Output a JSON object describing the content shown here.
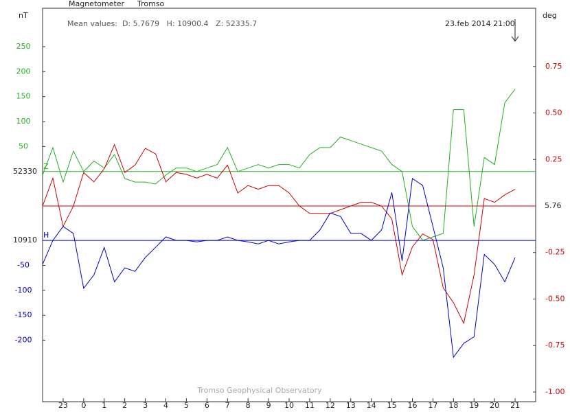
{
  "chart_data": {
    "type": "line",
    "title": "Magnetometer",
    "station": "Tromso",
    "mean_values": "Mean values:  D: 5.7679   H: 10900.4   Z: 52335.7",
    "timestamp": "23.feb 2014 21:00",
    "footer": "Tromso Geophysical Observatory",
    "left_unit": "nT",
    "right_unit": "deg",
    "xlim": [
      0,
      24
    ],
    "xticks": [
      {
        "value": 1,
        "label": "23"
      },
      {
        "value": 2,
        "label": "0"
      },
      {
        "value": 3,
        "label": "1"
      },
      {
        "value": 4,
        "label": "2"
      },
      {
        "value": 5,
        "label": "3"
      },
      {
        "value": 6,
        "label": "4"
      },
      {
        "value": 7,
        "label": "5"
      },
      {
        "value": 8,
        "label": "6"
      },
      {
        "value": 9,
        "label": "7"
      },
      {
        "value": 10,
        "label": "8"
      },
      {
        "value": 11,
        "label": "9"
      },
      {
        "value": 12,
        "label": "10"
      },
      {
        "value": 13,
        "label": "11"
      },
      {
        "value": 14,
        "label": "12"
      },
      {
        "value": 15,
        "label": "13"
      },
      {
        "value": 16,
        "label": "14"
      },
      {
        "value": 17,
        "label": "15"
      },
      {
        "value": 18,
        "label": "16"
      },
      {
        "value": 19,
        "label": "17"
      },
      {
        "value": 20,
        "label": "18"
      },
      {
        "value": 21,
        "label": "19"
      },
      {
        "value": 22,
        "label": "20"
      },
      {
        "value": 23,
        "label": "21"
      }
    ],
    "x": [
      0,
      0.5,
      1,
      1.5,
      2,
      2.5,
      3,
      3.5,
      4,
      4.5,
      5,
      5.5,
      6,
      6.5,
      7,
      7.5,
      8,
      8.5,
      9,
      9.5,
      10,
      10.5,
      11,
      11.5,
      12,
      12.5,
      13,
      13.5,
      14,
      14.5,
      15,
      15.5,
      16,
      16.5,
      17,
      17.5,
      18,
      18.5,
      19,
      19.5,
      20,
      20.5,
      21,
      21.5,
      22,
      22.5,
      23
    ],
    "series": [
      {
        "name": "Z",
        "color": "#22b022",
        "axis_side": "left",
        "baseline_label": "52330",
        "ylim": [
          -461,
          327
        ],
        "yticks": [
          250,
          200,
          150,
          100,
          50
        ],
        "values": [
          -7,
          48,
          -21,
          41,
          0,
          21,
          7,
          34,
          -14,
          -21,
          -21,
          -25,
          -7,
          7,
          7,
          0,
          7,
          14,
          48,
          0,
          7,
          14,
          7,
          14,
          14,
          7,
          34,
          48,
          48,
          69,
          62,
          55,
          48,
          41,
          14,
          0,
          -110,
          -138,
          -131,
          -124,
          124,
          124,
          -110,
          28,
          14,
          138,
          165
        ]
      },
      {
        "color": "#cc0000",
        "axis_side": "right",
        "baseline_label": "5.76",
        "ylim": [
          -1.052,
          1.063
        ],
        "yticks": [
          0.75,
          {
            "value": 0.5,
            "label": "0.50"
          },
          0.25,
          -0.25,
          {
            "value": -0.5,
            "label": "-0.50"
          },
          -0.75,
          {
            "value": -1,
            "label": "-1.00"
          }
        ],
        "values": [
          0,
          0.15,
          -0.11,
          0,
          0.18,
          0.13,
          0.2,
          0.33,
          0.18,
          0.22,
          0.31,
          0.28,
          0.13,
          0.18,
          0.17,
          0.15,
          0.17,
          0.15,
          0.22,
          0.07,
          0.11,
          0.09,
          0.11,
          0.11,
          0.07,
          0,
          -0.04,
          -0.04,
          -0.04,
          -0.02,
          0,
          0.02,
          0.02,
          0,
          -0.07,
          -0.37,
          -0.22,
          -0.15,
          -0.18,
          -0.44,
          -0.52,
          -0.63,
          -0.37,
          0.04,
          0.02,
          0.06,
          0.09
        ]
      },
      {
        "name": "H",
        "color": "#0000cc",
        "axis_side": "left",
        "baseline_label": "10910",
        "ylim": [
          -323,
          465
        ],
        "yticks": [
          -50,
          -100,
          -150,
          -200
        ],
        "values": [
          -48,
          0,
          28,
          14,
          -96,
          -69,
          -14,
          -83,
          -55,
          -62,
          -34,
          -14,
          7,
          0,
          0,
          -3,
          0,
          0,
          7,
          0,
          -3,
          -7,
          0,
          -7,
          -3,
          0,
          0,
          21,
          55,
          48,
          14,
          14,
          0,
          21,
          96,
          -41,
          124,
          110,
          28,
          -55,
          -234,
          -206,
          -193,
          -28,
          -48,
          -83,
          -34
        ]
      }
    ]
  }
}
